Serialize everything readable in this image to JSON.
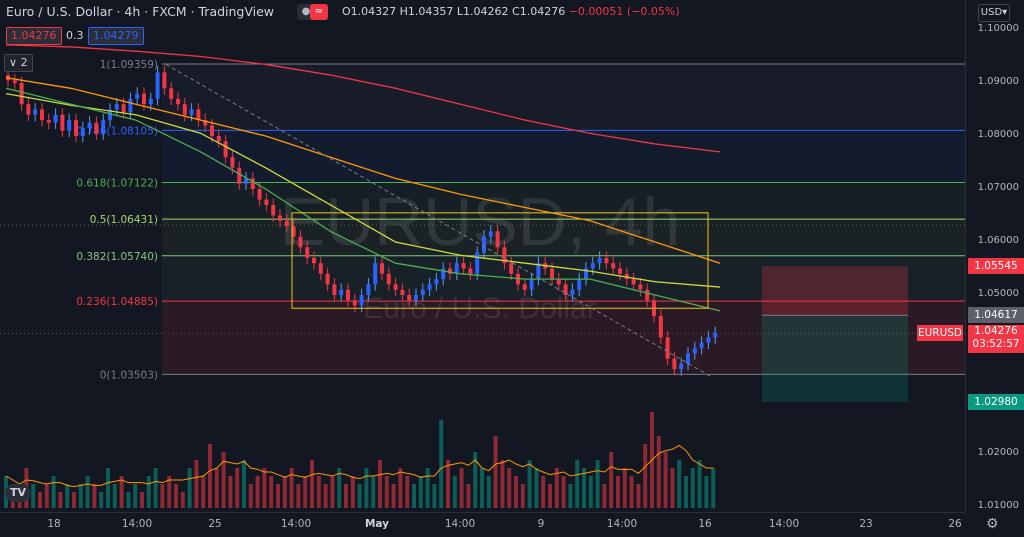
{
  "header": {
    "title": "Euro / U.S. Dollar · 4h · FXCM · TradingView",
    "open": "O1.04327",
    "high": "H1.04357",
    "low": "L1.04262",
    "close": "C1.04276",
    "change": "−0.00051 (−0.05%)"
  },
  "trade": {
    "sell": "1.04276",
    "spread": "0.3",
    "buy": "1.04279"
  },
  "indicator_toggle": "2",
  "currency_button": "USD",
  "watermark": {
    "symbol": "EURUSD, 4h",
    "name": "Euro / U.S. Dollar"
  },
  "fib_levels": [
    {
      "label": "1(1.09359)",
      "price": 1.09359,
      "color": "#787b86"
    },
    {
      "label": "0.786(1.08105)",
      "price": 1.08105,
      "color": "#2962ff"
    },
    {
      "label": "0.618(1.07122)",
      "price": 1.07122,
      "color": "#4caf50"
    },
    {
      "label": "0.5(1.06431)",
      "price": 1.06431,
      "color": "#a5d66d"
    },
    {
      "label": "0.382(1.05740)",
      "price": 1.0574,
      "color": "#81c784"
    },
    {
      "label": "0.236(1.04885)",
      "price": 1.04885,
      "color": "#f23645"
    },
    {
      "label": "0(1.03503)",
      "price": 1.03503,
      "color": "#787b86"
    }
  ],
  "price_scale": [
    "1.10000",
    "1.09000",
    "1.08000",
    "1.07000",
    "1.06000",
    "1.05000",
    "1.04000",
    "1.02000",
    "1.01000"
  ],
  "price_tags": {
    "stop": "1.05545",
    "entry": "1.04617",
    "symbol": "EURUSD",
    "last": "1.04276",
    "countdown": "03:52:57",
    "target": "1.02980"
  },
  "time_axis": [
    "18",
    "14:00",
    "25",
    "14:00",
    "May",
    "14:00",
    "9",
    "14:00",
    "16",
    "14:00",
    "23",
    "26"
  ],
  "chart_data": {
    "type": "candlestick",
    "symbol": "EURUSD",
    "interval": "4h",
    "ylim": [
      1.005,
      1.102
    ],
    "closes": [
      1.0905,
      1.09,
      1.086,
      1.084,
      1.085,
      1.083,
      1.0825,
      1.084,
      1.081,
      1.083,
      1.08,
      1.0815,
      1.0825,
      1.0805,
      1.083,
      1.085,
      1.086,
      1.0845,
      1.087,
      1.088,
      1.086,
      1.087,
      1.092,
      1.089,
      1.087,
      1.086,
      1.084,
      1.085,
      1.083,
      1.082,
      1.08,
      1.079,
      1.076,
      1.074,
      1.071,
      1.072,
      1.07,
      1.068,
      1.067,
      1.065,
      1.064,
      1.063,
      1.061,
      1.059,
      1.057,
      1.056,
      1.054,
      1.052,
      1.05,
      1.051,
      1.049,
      1.048,
      1.05,
      1.052,
      1.056,
      1.054,
      1.052,
      1.051,
      1.05,
      1.049,
      1.05,
      1.051,
      1.052,
      1.053,
      1.055,
      1.054,
      1.056,
      1.055,
      1.054,
      1.058,
      1.061,
      1.062,
      1.059,
      1.056,
      1.054,
      1.052,
      1.051,
      1.053,
      1.056,
      1.055,
      1.053,
      1.052,
      1.05,
      1.051,
      1.053,
      1.055,
      1.056,
      1.057,
      1.056,
      1.055,
      1.054,
      1.053,
      1.052,
      1.051,
      1.049,
      1.046,
      1.042,
      1.038,
      1.036,
      1.037,
      1.039,
      1.04,
      1.041,
      1.042,
      1.0428
    ],
    "moving_averages": [
      {
        "color": "#f23645",
        "points": [
          1.0972,
          1.0968,
          1.096,
          1.095,
          1.0935,
          1.0915,
          1.089,
          1.086,
          1.083,
          1.0805,
          1.0785,
          1.077
        ]
      },
      {
        "color": "#ff9800",
        "points": [
          1.091,
          1.089,
          1.086,
          1.083,
          1.08,
          1.076,
          1.072,
          1.069,
          1.0665,
          1.064,
          1.06,
          1.056
        ]
      },
      {
        "color": "#cddc39",
        "points": [
          1.088,
          1.0858,
          1.084,
          1.0805,
          1.074,
          1.067,
          1.06,
          1.0575,
          1.056,
          1.0545,
          1.0525,
          1.0515
        ]
      },
      {
        "color": "#4caf50",
        "points": [
          1.089,
          1.086,
          1.083,
          1.077,
          1.07,
          1.062,
          1.056,
          1.054,
          1.053,
          1.053,
          1.05,
          1.047
        ]
      }
    ],
    "range_box": {
      "top": 1.0655,
      "bottom": 1.0475
    },
    "short_position": {
      "stop": 1.05545,
      "entry": 1.04617,
      "target": 1.0298
    },
    "trendline": {
      "from": 1.0935,
      "to": 1.0345
    }
  },
  "volume": [
    4,
    3,
    2,
    5,
    3,
    2,
    3,
    4,
    2,
    3,
    2,
    3,
    4,
    3,
    2,
    5,
    3,
    4,
    2,
    3,
    2,
    4,
    5,
    3,
    4,
    3,
    2,
    5,
    6,
    4,
    8,
    5,
    7,
    4,
    5,
    6,
    3,
    4,
    5,
    4,
    3,
    4,
    5,
    3,
    4,
    6,
    4,
    3,
    4,
    5,
    3,
    4,
    3,
    5,
    4,
    6,
    4,
    3,
    5,
    4,
    3,
    4,
    5,
    3,
    11,
    6,
    4,
    5,
    3,
    7,
    5,
    4,
    9,
    6,
    5,
    4,
    3,
    6,
    5,
    4,
    3,
    5,
    4,
    3,
    6,
    5,
    4,
    6,
    3,
    7,
    4,
    5,
    4,
    3,
    8,
    12,
    9,
    7,
    5,
    6,
    4,
    5,
    6,
    4,
    5
  ]
}
